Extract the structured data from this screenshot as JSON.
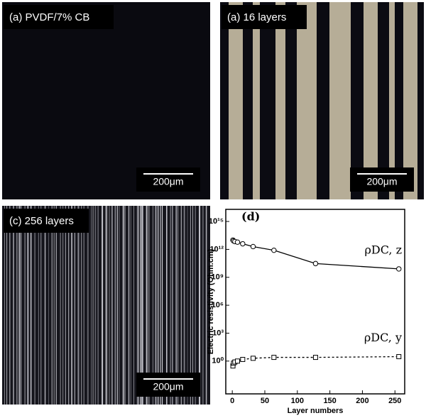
{
  "panels": [
    {
      "label": "(a) PVDF/7% CB",
      "scale": "200μm"
    },
    {
      "label": "(a) 16 layers",
      "scale": "200μm"
    },
    {
      "label": "(c) 256 layers",
      "scale": "200μm"
    }
  ],
  "chart_data": {
    "type": "scatter",
    "panel_label": "(d)",
    "x_label": "Layer numbers",
    "y_label": "Electric resistivity (Ohm.cm)",
    "xlim": [
      -10,
      265
    ],
    "xticks": [
      0,
      50,
      100,
      150,
      200,
      250
    ],
    "ylim": [
      0.0003,
      2e+16
    ],
    "log_y": true,
    "yticks": [
      {
        "value": 1,
        "label": "10⁰"
      },
      {
        "value": 1000,
        "label": "10³"
      },
      {
        "value": 1000000,
        "label": "10⁶"
      },
      {
        "value": 1000000000,
        "label": "10⁹"
      },
      {
        "value": 1000000000000,
        "label": "10¹²"
      },
      {
        "value": 1000000000000000,
        "label": "10¹⁵"
      }
    ],
    "x": [
      1,
      2,
      4,
      8,
      16,
      32,
      64,
      128,
      256
    ],
    "series": [
      {
        "name": "ρDC, z",
        "color": "#000000",
        "marker": "circle",
        "dashed": false,
        "values": [
          10000000000000,
          8000000000000,
          7000000000000,
          6000000000000,
          4000000000000,
          2000000000000,
          800000000000,
          30000000000,
          8000000000
        ]
      },
      {
        "name": "ρDC, y",
        "color": "#000000",
        "marker": "square",
        "dashed": true,
        "values": [
          0.3,
          0.6,
          0.8,
          1,
          1.5,
          2,
          2.5,
          2.5,
          3
        ]
      }
    ]
  }
}
